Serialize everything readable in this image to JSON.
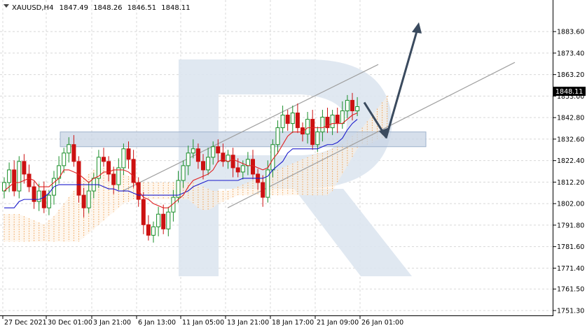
{
  "header": {
    "symbol": "XAUUSD,H4",
    "open": "1847.49",
    "high": "1848.26",
    "low": "1846.51",
    "close": "1848.11"
  },
  "colors": {
    "bull_candle": "#1a8f2a",
    "bear_candle": "#cc1111",
    "tenkan": "#e02020",
    "kijun": "#1a1acc",
    "cloud": "#f0a050",
    "channel": "#a0a0a0",
    "zone": "#c8d4e4",
    "arrow": "#3a4a5e",
    "watermark": "#dde6f0",
    "grid": "#d8d8d8",
    "price_label_bg": "#000000"
  },
  "chart_data": {
    "type": "candlestick",
    "symbol": "XAUUSD",
    "timeframe": "H4",
    "ylim": [
      1751.3,
      1893.6
    ],
    "grid": true,
    "y_ticks": [
      "1883.60",
      "1873.40",
      "1863.20",
      "1853.00",
      "1842.80",
      "1832.60",
      "1822.40",
      "1812.20",
      "1802.00",
      "1791.80",
      "1781.60",
      "1771.40",
      "1761.50",
      "1751.30"
    ],
    "x_ticks": [
      "27 Dec 2021",
      "30 Dec 01:00",
      "3 Jan 21:00",
      "6 Jan 13:00",
      "11 Jan 05:00",
      "13 Jan 21:00",
      "18 Jan 17:00",
      "21 Jan 09:00",
      "26 Jan 01:00"
    ],
    "current_price": "1848.11",
    "closes": [
      1812,
      1818,
      1808,
      1822,
      1816,
      1810,
      1803,
      1808,
      1800,
      1806,
      1814,
      1820,
      1826,
      1830,
      1822,
      1806,
      1800,
      1808,
      1814,
      1824,
      1822,
      1816,
      1811,
      1819,
      1828,
      1823,
      1812,
      1804,
      1792,
      1787,
      1791,
      1797,
      1790,
      1798,
      1805,
      1813,
      1820,
      1826,
      1828,
      1822,
      1818,
      1824,
      1829,
      1826,
      1822,
      1825,
      1819,
      1817,
      1820,
      1823,
      1816,
      1812,
      1805,
      1818,
      1830,
      1838,
      1844,
      1840,
      1845,
      1838,
      1835,
      1842,
      1830,
      1836,
      1843,
      1838,
      1844,
      1840,
      1846,
      1851,
      1846,
      1848
    ],
    "tenkan": [
      1808,
      1810,
      1812,
      1812,
      1813,
      1814,
      1813,
      1810,
      1810,
      1810,
      1812,
      1814,
      1818,
      1818,
      1817,
      1816,
      1814,
      1812,
      1814,
      1815,
      1817,
      1817,
      1818,
      1818,
      1818,
      1817,
      1815,
      1808,
      1805,
      1804,
      1802,
      1801,
      1800,
      1800,
      1802,
      1804,
      1806,
      1810,
      1813,
      1814,
      1815,
      1816,
      1818,
      1822,
      1823,
      1822,
      1823,
      1822,
      1821,
      1820,
      1820,
      1819,
      1818,
      1819,
      1823,
      1826,
      1830,
      1834,
      1836,
      1836,
      1836,
      1838,
      1838,
      1838,
      1838,
      1839,
      1840,
      1840,
      1840,
      1842,
      1844,
      1845
    ],
    "kijun": [
      1800,
      1800,
      1800,
      1803,
      1804,
      1804,
      1804,
      1804,
      1805,
      1807,
      1810,
      1811,
      1811,
      1811,
      1811,
      1811,
      1811,
      1811,
      1811,
      1811,
      1810,
      1809,
      1809,
      1808,
      1808,
      1808,
      1807,
      1806,
      1806,
      1806,
      1806,
      1806,
      1806,
      1806,
      1806,
      1806,
      1807,
      1808,
      1810,
      1811,
      1812,
      1813,
      1813,
      1813,
      1813,
      1813,
      1813,
      1813,
      1814,
      1814,
      1814,
      1814,
      1814,
      1815,
      1818,
      1820,
      1822,
      1826,
      1828,
      1828,
      1828,
      1828,
      1828,
      1828,
      1829,
      1830,
      1830,
      1831,
      1833,
      1837,
      1840,
      1842
    ],
    "cloud_top": [
      1797,
      1797,
      1797,
      1797,
      1796,
      1795,
      1794,
      1793,
      1792,
      1794,
      1796,
      1799,
      1802,
      1805,
      1808,
      1811,
      1814,
      1816,
      1818,
      1818,
      1819,
      1819,
      1818,
      1817,
      1816,
      1815,
      1814,
      1813,
      1812,
      1812,
      1812,
      1812,
      1812,
      1812,
      1812,
      1812,
      1812,
      1812,
      1812,
      1811,
      1810,
      1809,
      1808,
      1808,
      1808,
      1808,
      1809,
      1810,
      1811,
      1812,
      1813,
      1814,
      1815,
      1816,
      1817,
      1818,
      1819,
      1820,
      1821,
      1822,
      1823,
      1824,
      1825,
      1826,
      1826,
      1827,
      1828,
      1829,
      1830,
      1832,
      1834,
      1836,
      1838,
      1841,
      1844,
      1847,
      1850,
      1853
    ],
    "cloud_bottom": [
      1784,
      1784,
      1784,
      1784,
      1784,
      1784,
      1784,
      1784,
      1784,
      1784,
      1784,
      1784,
      1784,
      1784,
      1784,
      1784,
      1786,
      1788,
      1790,
      1792,
      1794,
      1796,
      1798,
      1800,
      1802,
      1803,
      1804,
      1804,
      1804,
      1804,
      1804,
      1804,
      1804,
      1804,
      1804,
      1804,
      1804,
      1804,
      1802,
      1800,
      1799,
      1799,
      1800,
      1802,
      1803,
      1804,
      1805,
      1806,
      1806,
      1806,
      1806,
      1806,
      1806,
      1806,
      1806,
      1806,
      1806,
      1806,
      1806,
      1806,
      1806,
      1806,
      1806,
      1806,
      1806,
      1806,
      1808,
      1812,
      1816,
      1820,
      1824,
      1828,
      1830,
      1830,
      1831,
      1832,
      1833,
      1834
    ],
    "support_zone": [
      1829,
      1836
    ],
    "channel_upper": [
      [
        1808,
        1868
      ],
      [
        1822,
        1871
      ]
    ],
    "channel_lower": [
      [
        1800,
        1859
      ],
      [
        1833,
        1869
      ]
    ],
    "forecast_path": [
      1850,
      1833,
      1888
    ]
  }
}
